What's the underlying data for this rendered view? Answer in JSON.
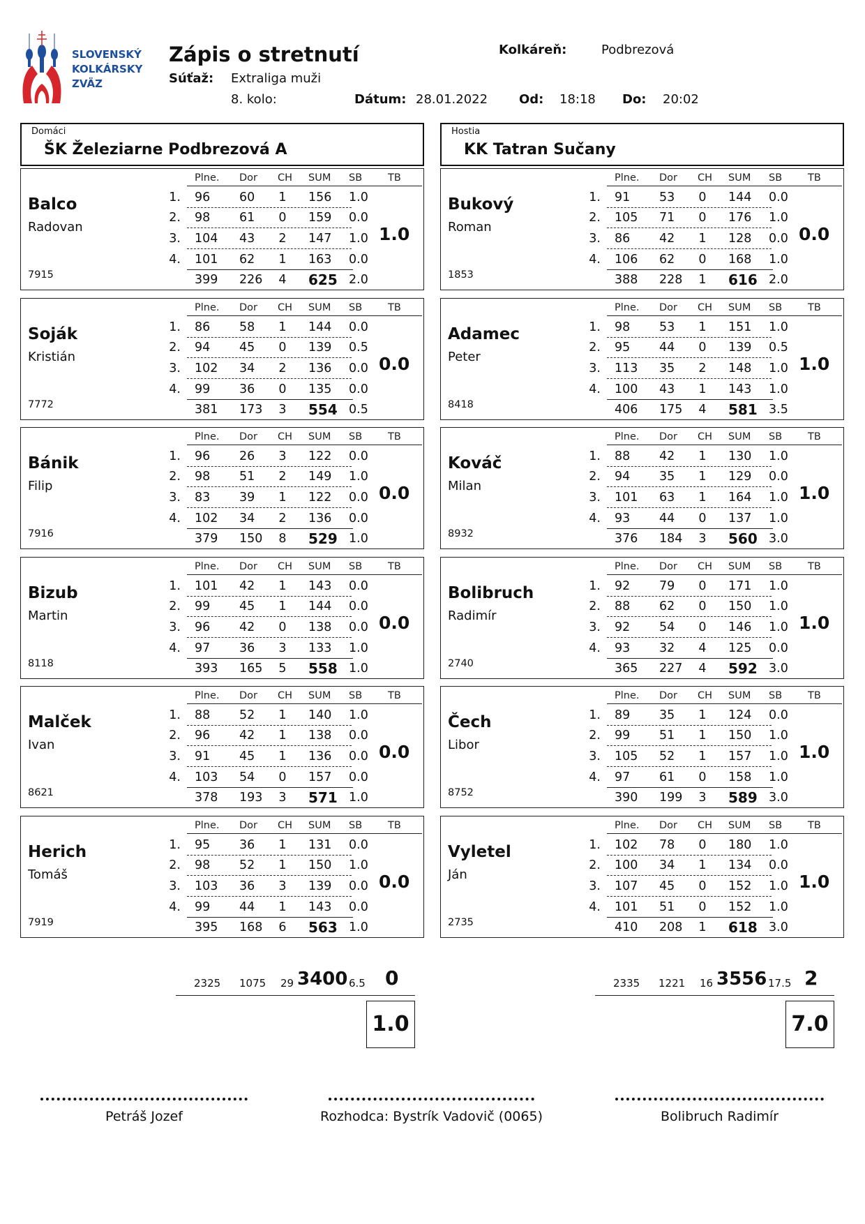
{
  "logo": {
    "lines": [
      "SLOVENSKÝ",
      "KOLKÁRSKY",
      "ZVÄZ"
    ],
    "colors": {
      "blue": "#1d4f9c",
      "red": "#d7262b"
    }
  },
  "header": {
    "title": "Zápis o stretnutí",
    "venue_label": "Kolkáreň:",
    "venue": "Podbrezová",
    "competition_label": "Súťaž:",
    "competition": "Extraliga muži",
    "round": "8. kolo:",
    "date_label": "Dátum:",
    "date": "28.01.2022",
    "from_label": "Od:",
    "from": "18:18",
    "to_label": "Do:",
    "to": "20:02"
  },
  "columns": [
    "Plne.",
    "Dor",
    "CH",
    "SUM",
    "SB",
    "TB"
  ],
  "row_numbers": [
    "1.",
    "2.",
    "3.",
    "4."
  ],
  "home": {
    "label": "Domáci",
    "team": "ŠK Železiarne Podbrezová A",
    "players": [
      {
        "surname": "Balco",
        "firstname": "Radovan",
        "id": "7915",
        "rows": [
          [
            "96",
            "60",
            "1",
            "156",
            "1.0"
          ],
          [
            "98",
            "61",
            "0",
            "159",
            "0.0"
          ],
          [
            "104",
            "43",
            "2",
            "147",
            "1.0"
          ],
          [
            "101",
            "62",
            "1",
            "163",
            "0.0"
          ]
        ],
        "total": [
          "399",
          "226",
          "4",
          "625",
          "2.0"
        ],
        "tb": "1.0"
      },
      {
        "surname": "Soják",
        "firstname": "Kristián",
        "id": "7772",
        "rows": [
          [
            "86",
            "58",
            "1",
            "144",
            "0.0"
          ],
          [
            "94",
            "45",
            "0",
            "139",
            "0.5"
          ],
          [
            "102",
            "34",
            "2",
            "136",
            "0.0"
          ],
          [
            "99",
            "36",
            "0",
            "135",
            "0.0"
          ]
        ],
        "total": [
          "381",
          "173",
          "3",
          "554",
          "0.5"
        ],
        "tb": "0.0"
      },
      {
        "surname": "Bánik",
        "firstname": "Filip",
        "id": "7916",
        "rows": [
          [
            "96",
            "26",
            "3",
            "122",
            "0.0"
          ],
          [
            "98",
            "51",
            "2",
            "149",
            "1.0"
          ],
          [
            "83",
            "39",
            "1",
            "122",
            "0.0"
          ],
          [
            "102",
            "34",
            "2",
            "136",
            "0.0"
          ]
        ],
        "total": [
          "379",
          "150",
          "8",
          "529",
          "1.0"
        ],
        "tb": "0.0"
      },
      {
        "surname": "Bizub",
        "firstname": "Martin",
        "id": "8118",
        "rows": [
          [
            "101",
            "42",
            "1",
            "143",
            "0.0"
          ],
          [
            "99",
            "45",
            "1",
            "144",
            "0.0"
          ],
          [
            "96",
            "42",
            "0",
            "138",
            "0.0"
          ],
          [
            "97",
            "36",
            "3",
            "133",
            "1.0"
          ]
        ],
        "total": [
          "393",
          "165",
          "5",
          "558",
          "1.0"
        ],
        "tb": "0.0"
      },
      {
        "surname": "Malček",
        "firstname": "Ivan",
        "id": "8621",
        "rows": [
          [
            "88",
            "52",
            "1",
            "140",
            "1.0"
          ],
          [
            "96",
            "42",
            "1",
            "138",
            "0.0"
          ],
          [
            "91",
            "45",
            "1",
            "136",
            "0.0"
          ],
          [
            "103",
            "54",
            "0",
            "157",
            "0.0"
          ]
        ],
        "total": [
          "378",
          "193",
          "3",
          "571",
          "1.0"
        ],
        "tb": "0.0"
      },
      {
        "surname": "Herich",
        "firstname": "Tomáš",
        "id": "7919",
        "rows": [
          [
            "95",
            "36",
            "1",
            "131",
            "0.0"
          ],
          [
            "98",
            "52",
            "1",
            "150",
            "1.0"
          ],
          [
            "103",
            "36",
            "3",
            "139",
            "0.0"
          ],
          [
            "99",
            "44",
            "1",
            "143",
            "0.0"
          ]
        ],
        "total": [
          "395",
          "168",
          "6",
          "563",
          "1.0"
        ],
        "tb": "0.0"
      }
    ],
    "totals": {
      "plne": "2325",
      "dor": "1075",
      "ch": "29",
      "sum": "3400",
      "sb": "6.5",
      "tb": "0"
    },
    "points": "1.0"
  },
  "away": {
    "label": "Hostia",
    "team": "KK Tatran Sučany",
    "players": [
      {
        "surname": "Bukový",
        "firstname": "Roman",
        "id": "1853",
        "rows": [
          [
            "91",
            "53",
            "0",
            "144",
            "0.0"
          ],
          [
            "105",
            "71",
            "0",
            "176",
            "1.0"
          ],
          [
            "86",
            "42",
            "1",
            "128",
            "0.0"
          ],
          [
            "106",
            "62",
            "0",
            "168",
            "1.0"
          ]
        ],
        "total": [
          "388",
          "228",
          "1",
          "616",
          "2.0"
        ],
        "tb": "0.0"
      },
      {
        "surname": "Adamec",
        "firstname": "Peter",
        "id": "8418",
        "rows": [
          [
            "98",
            "53",
            "1",
            "151",
            "1.0"
          ],
          [
            "95",
            "44",
            "0",
            "139",
            "0.5"
          ],
          [
            "113",
            "35",
            "2",
            "148",
            "1.0"
          ],
          [
            "100",
            "43",
            "1",
            "143",
            "1.0"
          ]
        ],
        "total": [
          "406",
          "175",
          "4",
          "581",
          "3.5"
        ],
        "tb": "1.0"
      },
      {
        "surname": "Kováč",
        "firstname": "Milan",
        "id": "8932",
        "rows": [
          [
            "88",
            "42",
            "1",
            "130",
            "1.0"
          ],
          [
            "94",
            "35",
            "1",
            "129",
            "0.0"
          ],
          [
            "101",
            "63",
            "1",
            "164",
            "1.0"
          ],
          [
            "93",
            "44",
            "0",
            "137",
            "1.0"
          ]
        ],
        "total": [
          "376",
          "184",
          "3",
          "560",
          "3.0"
        ],
        "tb": "1.0"
      },
      {
        "surname": "Bolibruch",
        "firstname": "Radimír",
        "id": "2740",
        "rows": [
          [
            "92",
            "79",
            "0",
            "171",
            "1.0"
          ],
          [
            "88",
            "62",
            "0",
            "150",
            "1.0"
          ],
          [
            "92",
            "54",
            "0",
            "146",
            "1.0"
          ],
          [
            "93",
            "32",
            "4",
            "125",
            "0.0"
          ]
        ],
        "total": [
          "365",
          "227",
          "4",
          "592",
          "3.0"
        ],
        "tb": "1.0"
      },
      {
        "surname": "Čech",
        "firstname": "Libor",
        "id": "8752",
        "rows": [
          [
            "89",
            "35",
            "1",
            "124",
            "0.0"
          ],
          [
            "99",
            "51",
            "1",
            "150",
            "1.0"
          ],
          [
            "105",
            "52",
            "1",
            "157",
            "1.0"
          ],
          [
            "97",
            "61",
            "0",
            "158",
            "1.0"
          ]
        ],
        "total": [
          "390",
          "199",
          "3",
          "589",
          "3.0"
        ],
        "tb": "1.0"
      },
      {
        "surname": "Vyletel",
        "firstname": "Ján",
        "id": "2735",
        "rows": [
          [
            "102",
            "78",
            "0",
            "180",
            "1.0"
          ],
          [
            "100",
            "34",
            "1",
            "134",
            "0.0"
          ],
          [
            "107",
            "45",
            "0",
            "152",
            "1.0"
          ],
          [
            "101",
            "51",
            "0",
            "152",
            "1.0"
          ]
        ],
        "total": [
          "410",
          "208",
          "1",
          "618",
          "3.0"
        ],
        "tb": "1.0"
      }
    ],
    "totals": {
      "plne": "2335",
      "dor": "1221",
      "ch": "16",
      "sum": "3556",
      "sb": "17.5",
      "tb": "2"
    },
    "points": "7.0"
  },
  "signatures": {
    "home_captain": "Petráš Jozef",
    "referee": "Rozhodca: Bystrík Vadovič (0065)",
    "away_captain": "Bolibruch Radimír"
  }
}
